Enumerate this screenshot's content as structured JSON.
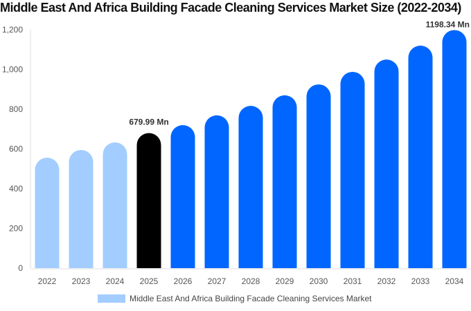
{
  "chart_data": {
    "type": "bar",
    "title": "Middle East And Africa Building Facade Cleaning Services Market Size (2022-2034)",
    "categories": [
      "2022",
      "2023",
      "2024",
      "2025",
      "2026",
      "2027",
      "2028",
      "2029",
      "2030",
      "2031",
      "2032",
      "2033",
      "2034"
    ],
    "series": [
      {
        "name": "Middle East And Africa Building Facade Cleaning Services Market",
        "values": [
          556,
          595,
          633,
          679.99,
          720,
          769,
          817,
          870,
          925,
          988,
          1050,
          1120,
          1198.34
        ]
      }
    ],
    "data_labels": {
      "3": "679.99 Mn",
      "12": "1198.34 Mn"
    },
    "ylim": [
      0,
      1200
    ],
    "yticks": [
      "0",
      "200",
      "400",
      "600",
      "800",
      "1,000",
      "1,200"
    ],
    "colors": {
      "historic": "#a3cdff",
      "current": "#000000",
      "forecast": "#0066ff"
    },
    "grid": false,
    "legend": "bottom"
  }
}
